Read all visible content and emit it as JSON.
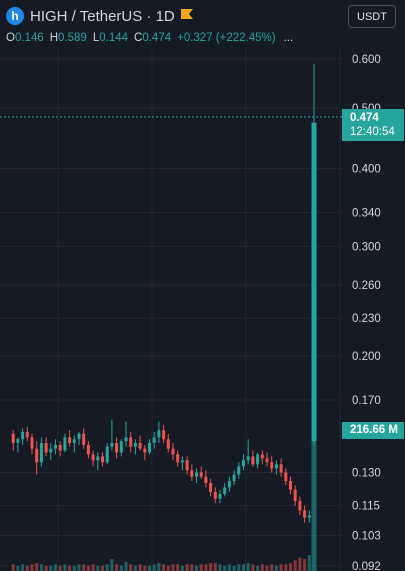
{
  "symbol": {
    "logo_letter": "h",
    "title": "HIGH / TetherUS · 1D",
    "icon": "flag-icon"
  },
  "ohlc": {
    "o_label": "O",
    "o_value": "0.146",
    "h_label": "H",
    "h_value": "0.589",
    "l_label": "L",
    "l_value": "0.144",
    "c_label": "C",
    "c_value": "0.474",
    "change": "+0.327 (+222.45%)",
    "more": "..."
  },
  "currency_selector": "USDT",
  "last_price": {
    "price": "0.474",
    "countdown": "12:40:54"
  },
  "volume_label": "216.66 M",
  "colors": {
    "up": "#26a69a",
    "down": "#ef5350",
    "background": "#161a25",
    "grid": "#232632"
  },
  "chart_data": {
    "type": "candlestick",
    "scale": "log",
    "y_ticks": [
      "0.600",
      "0.500",
      "0.400",
      "0.340",
      "0.300",
      "0.260",
      "0.230",
      "0.200",
      "0.170",
      "0.130",
      "0.115",
      "0.103",
      "0.092"
    ],
    "ylim": [
      0.092,
      0.62
    ],
    "candles": [
      [
        0.15,
        0.152,
        0.141,
        0.145
      ],
      [
        0.145,
        0.148,
        0.14,
        0.147
      ],
      [
        0.147,
        0.153,
        0.144,
        0.151
      ],
      [
        0.151,
        0.154,
        0.146,
        0.148
      ],
      [
        0.148,
        0.15,
        0.139,
        0.142
      ],
      [
        0.142,
        0.146,
        0.129,
        0.135
      ],
      [
        0.135,
        0.148,
        0.133,
        0.145
      ],
      [
        0.145,
        0.148,
        0.138,
        0.14
      ],
      [
        0.14,
        0.145,
        0.136,
        0.142
      ],
      [
        0.142,
        0.147,
        0.139,
        0.144
      ],
      [
        0.144,
        0.146,
        0.138,
        0.141
      ],
      [
        0.141,
        0.15,
        0.14,
        0.148
      ],
      [
        0.148,
        0.152,
        0.143,
        0.145
      ],
      [
        0.145,
        0.149,
        0.14,
        0.147
      ],
      [
        0.147,
        0.151,
        0.144,
        0.15
      ],
      [
        0.15,
        0.153,
        0.142,
        0.144
      ],
      [
        0.144,
        0.146,
        0.137,
        0.139
      ],
      [
        0.139,
        0.141,
        0.133,
        0.136
      ],
      [
        0.136,
        0.14,
        0.131,
        0.138
      ],
      [
        0.138,
        0.14,
        0.133,
        0.135
      ],
      [
        0.135,
        0.145,
        0.134,
        0.143
      ],
      [
        0.143,
        0.158,
        0.141,
        0.145
      ],
      [
        0.145,
        0.148,
        0.137,
        0.14
      ],
      [
        0.14,
        0.147,
        0.138,
        0.146
      ],
      [
        0.146,
        0.157,
        0.143,
        0.148
      ],
      [
        0.148,
        0.151,
        0.14,
        0.143
      ],
      [
        0.143,
        0.147,
        0.139,
        0.145
      ],
      [
        0.145,
        0.149,
        0.141,
        0.142
      ],
      [
        0.142,
        0.144,
        0.136,
        0.14
      ],
      [
        0.14,
        0.147,
        0.139,
        0.145
      ],
      [
        0.145,
        0.151,
        0.142,
        0.148
      ],
      [
        0.148,
        0.157,
        0.145,
        0.152
      ],
      [
        0.152,
        0.155,
        0.145,
        0.147
      ],
      [
        0.147,
        0.15,
        0.14,
        0.142
      ],
      [
        0.142,
        0.145,
        0.136,
        0.139
      ],
      [
        0.139,
        0.141,
        0.133,
        0.135
      ],
      [
        0.135,
        0.138,
        0.131,
        0.136
      ],
      [
        0.136,
        0.138,
        0.129,
        0.131
      ],
      [
        0.131,
        0.134,
        0.126,
        0.128
      ],
      [
        0.128,
        0.132,
        0.125,
        0.13
      ],
      [
        0.13,
        0.133,
        0.127,
        0.128
      ],
      [
        0.128,
        0.131,
        0.123,
        0.125
      ],
      [
        0.125,
        0.127,
        0.119,
        0.121
      ],
      [
        0.121,
        0.123,
        0.116,
        0.118
      ],
      [
        0.118,
        0.122,
        0.116,
        0.12
      ],
      [
        0.12,
        0.125,
        0.119,
        0.123
      ],
      [
        0.123,
        0.128,
        0.121,
        0.126
      ],
      [
        0.126,
        0.131,
        0.124,
        0.129
      ],
      [
        0.129,
        0.135,
        0.127,
        0.133
      ],
      [
        0.133,
        0.139,
        0.131,
        0.136
      ],
      [
        0.136,
        0.147,
        0.134,
        0.138
      ],
      [
        0.138,
        0.141,
        0.133,
        0.134
      ],
      [
        0.134,
        0.14,
        0.132,
        0.139
      ],
      [
        0.139,
        0.141,
        0.134,
        0.137
      ],
      [
        0.137,
        0.14,
        0.133,
        0.135
      ],
      [
        0.135,
        0.138,
        0.13,
        0.132
      ],
      [
        0.132,
        0.136,
        0.129,
        0.134
      ],
      [
        0.134,
        0.137,
        0.128,
        0.13
      ],
      [
        0.13,
        0.132,
        0.124,
        0.126
      ],
      [
        0.126,
        0.128,
        0.12,
        0.122
      ],
      [
        0.122,
        0.124,
        0.115,
        0.117
      ],
      [
        0.117,
        0.119,
        0.111,
        0.113
      ],
      [
        0.113,
        0.115,
        0.108,
        0.11
      ],
      [
        0.11,
        0.113,
        0.108,
        0.111
      ],
      [
        0.146,
        0.589,
        0.144,
        0.474
      ]
    ],
    "volume": [
      0.05,
      0.04,
      0.05,
      0.04,
      0.05,
      0.06,
      0.05,
      0.04,
      0.04,
      0.05,
      0.04,
      0.05,
      0.04,
      0.04,
      0.05,
      0.05,
      0.04,
      0.05,
      0.04,
      0.04,
      0.05,
      0.09,
      0.05,
      0.04,
      0.07,
      0.05,
      0.04,
      0.05,
      0.04,
      0.04,
      0.05,
      0.06,
      0.05,
      0.04,
      0.05,
      0.05,
      0.04,
      0.05,
      0.05,
      0.04,
      0.05,
      0.05,
      0.06,
      0.06,
      0.05,
      0.04,
      0.05,
      0.04,
      0.05,
      0.05,
      0.06,
      0.05,
      0.04,
      0.05,
      0.04,
      0.05,
      0.04,
      0.05,
      0.05,
      0.06,
      0.08,
      0.1,
      0.09,
      0.12,
      1.0
    ]
  }
}
